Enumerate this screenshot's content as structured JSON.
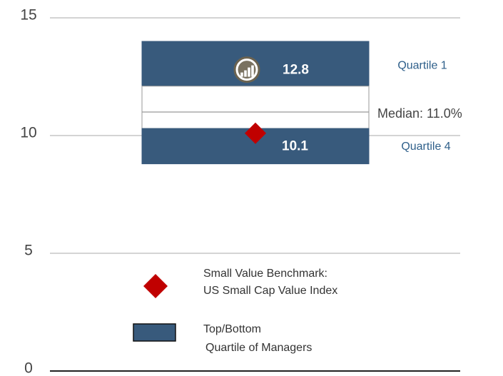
{
  "chart_data": {
    "type": "quartile_range",
    "ylim": [
      0,
      15
    ],
    "yticks": [
      0,
      5,
      10,
      15
    ],
    "grid": true,
    "bounds": [
      14.0,
      12.1,
      11.0,
      10.3,
      8.8
    ],
    "colors": [
      "#385a7c",
      "#ffffff",
      "#ffffff",
      "#385a7c"
    ],
    "top_label": "Quartile 1",
    "bottom_label": "Quartile 4",
    "median": 11.0,
    "median_label": "Median: 11.0%",
    "fund": {
      "value": 12.8
    },
    "benchmark": {
      "value": 10.1,
      "color": "#c00000"
    },
    "legend": [
      {
        "lines": [
          "Small Value Benchmark:",
          "US Small Cap Value Index"
        ]
      },
      {
        "lines": [
          "Top/Bottom",
          "Quartile of Managers"
        ]
      }
    ]
  }
}
